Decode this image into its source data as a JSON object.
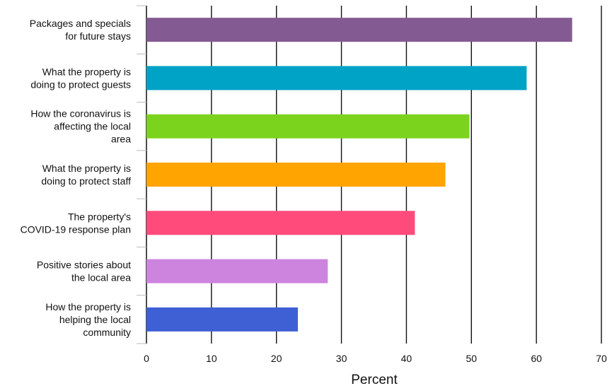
{
  "chart_data": {
    "type": "bar",
    "orientation": "horizontal",
    "categories": [
      "Packages and specials for future stays",
      "What the property is doing to protect guests",
      "How the coronavirus is affecting the local area",
      "What the property is doing to protect staff",
      "The property's COVID-19 response plan",
      "Positive stories about the local area",
      "How the property is helping the local community"
    ],
    "category_lines": [
      [
        "Packages and specials",
        "for future stays"
      ],
      [
        "What the property is",
        "doing to protect guests"
      ],
      [
        "How the coronavirus is",
        "affecting the local",
        "area"
      ],
      [
        "What the property is",
        "doing to protect staff"
      ],
      [
        "The property's",
        "COVID-19 response plan"
      ],
      [
        "Positive stories about",
        "the local area"
      ],
      [
        "How the property is",
        "helping the local",
        "community"
      ]
    ],
    "values": [
      65.5,
      58.5,
      49.7,
      46.0,
      41.3,
      27.9,
      23.3
    ],
    "colors": [
      "#845a92",
      "#00a2c6",
      "#7cd31e",
      "#ffa400",
      "#ff4b7b",
      "#cd84de",
      "#3f5fd4"
    ],
    "xlabel": "Percent",
    "ylabel": "",
    "xlim": [
      0,
      70
    ],
    "xticks": [
      0,
      10,
      20,
      30,
      40,
      50,
      60,
      70
    ],
    "grid": "vertical"
  }
}
